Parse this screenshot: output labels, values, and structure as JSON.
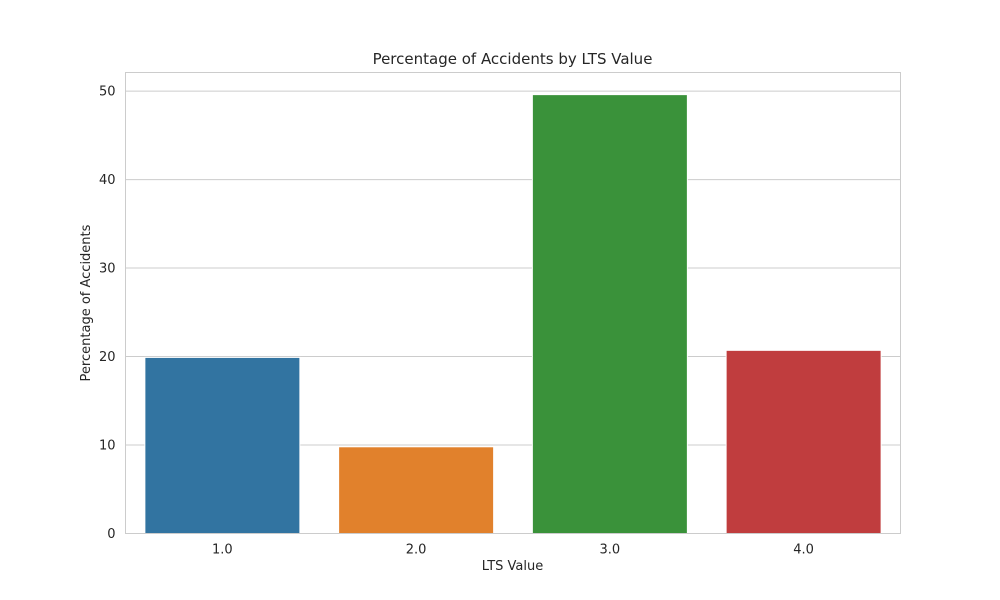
{
  "chart_data": {
    "type": "bar",
    "title": "Percentage of Accidents by LTS Value",
    "xlabel": "LTS Value",
    "ylabel": "Percentage of Accidents",
    "categories": [
      "1.0",
      "2.0",
      "3.0",
      "4.0"
    ],
    "values": [
      19.9,
      9.8,
      49.6,
      20.7
    ],
    "colors": [
      "#3274a1",
      "#e1812c",
      "#3a923a",
      "#c03d3e"
    ],
    "ylim": [
      0,
      52.1
    ],
    "yticks": [
      0,
      10,
      20,
      30,
      40,
      50
    ],
    "grid": "horizontal",
    "style": {
      "background": "#ffffff",
      "grid_color": "#cccccc",
      "spine_color": "#cccccc",
      "text_color": "#262626"
    }
  }
}
